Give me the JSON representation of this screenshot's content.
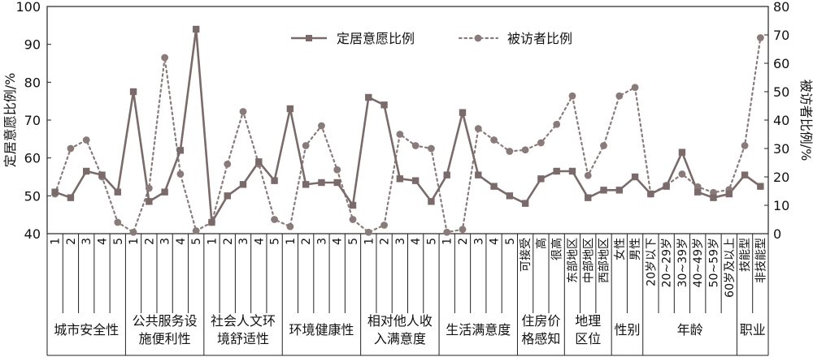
{
  "chart_data": {
    "type": "line",
    "title": "",
    "ylabel": "定居意愿比例/%",
    "y2label": "被访者比例/%",
    "ylim": [
      40,
      100
    ],
    "y2lim": [
      0,
      80
    ],
    "yticks": [
      "40",
      "50",
      "60",
      "70",
      "80",
      "90",
      "100"
    ],
    "y2ticks": [
      "0",
      "10",
      "20",
      "30",
      "40",
      "50",
      "60",
      "70",
      "80"
    ],
    "legend_position": "top-center",
    "series_colors": {
      "settle": "#7a6a6a",
      "resp": "#8a7b7b"
    },
    "categories": [
      "1",
      "2",
      "3",
      "4",
      "5",
      "1",
      "2",
      "3",
      "4",
      "5",
      "1",
      "2",
      "3",
      "4",
      "5",
      "1",
      "2",
      "3",
      "4",
      "5",
      "1",
      "2",
      "3",
      "4",
      "5",
      "1",
      "2",
      "3",
      "4",
      "5",
      "可接受",
      "高",
      "很高",
      "东部地区",
      "中部地区",
      "西部地区",
      "女性",
      "男性",
      "20岁以下",
      "20~29岁",
      "30~39岁",
      "40~49岁",
      "50~59岁",
      "60岁及以上",
      "技能型",
      "非技能型"
    ],
    "groups": [
      {
        "label": [
          "城市安全性"
        ],
        "count": 5
      },
      {
        "label": [
          "公共服务设",
          "施便利性"
        ],
        "count": 5
      },
      {
        "label": [
          "社会人文环",
          "境舒适性"
        ],
        "count": 5
      },
      {
        "label": [
          "环境健康性"
        ],
        "count": 5
      },
      {
        "label": [
          "相对他人收",
          "入满意度"
        ],
        "count": 5
      },
      {
        "label": [
          "生活满意度"
        ],
        "count": 5
      },
      {
        "label": [
          "住房价",
          "格感知"
        ],
        "count": 3
      },
      {
        "label": [
          "地理",
          "区位"
        ],
        "count": 3
      },
      {
        "label": [
          "性别"
        ],
        "count": 2
      },
      {
        "label": [
          "年龄"
        ],
        "count": 6
      },
      {
        "label": [
          "职业"
        ],
        "count": 2
      }
    ],
    "series": [
      {
        "name": "定居意愿比例",
        "axis": "left",
        "style": "solid-square",
        "values": [
          51,
          49.5,
          56.5,
          55.5,
          51,
          77.5,
          48.5,
          51,
          62,
          94,
          43,
          50,
          53,
          59,
          54,
          73,
          53,
          53.5,
          53.5,
          47.5,
          76,
          74,
          54.5,
          54,
          48.5,
          55.5,
          72,
          55.5,
          52.5,
          50,
          48,
          54.5,
          56.5,
          56.5,
          49.5,
          51.5,
          51.5,
          55,
          50.5,
          52.5,
          61.5,
          51,
          49.5,
          50.5,
          55.5,
          52.5
        ]
      },
      {
        "name": "被访者比例",
        "axis": "right",
        "style": "dotted-circle",
        "values": [
          14,
          30,
          33,
          20,
          4,
          0.5,
          16,
          62,
          21,
          1,
          4,
          24.5,
          43,
          24.5,
          5,
          2.5,
          31,
          38,
          22.5,
          5,
          0.5,
          3,
          35,
          31,
          30,
          0.5,
          1.5,
          37,
          33,
          29,
          29.5,
          32,
          38.5,
          48.5,
          20.5,
          31,
          48.5,
          51.5,
          14,
          17,
          21,
          16.5,
          14.5,
          15.5,
          31,
          69
        ]
      }
    ]
  }
}
